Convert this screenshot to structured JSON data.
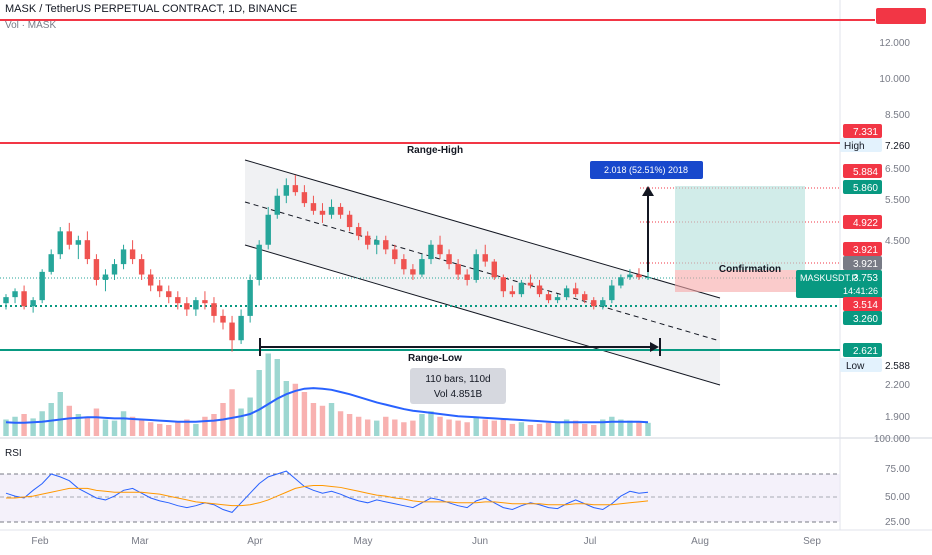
{
  "header": {
    "title": "MASK / TetherUS PERPETUAL CONTRACT, 1D, BINANCE",
    "volume_label": "Vol · MASK"
  },
  "colors": {
    "up": "#26a69a",
    "down": "#ef5350",
    "range_line": "#f23645",
    "ma_line": "#2962ff",
    "rsi_line": "#2962ff",
    "rsi_ma": "#ff9800",
    "confirm_box": "#f7a9a8",
    "target_box": "#b2dfdb",
    "measure_label": "#1848cc"
  },
  "chart_data": [
    {
      "type": "candlestick",
      "title": "MASK / TetherUS PERPETUAL CONTRACT, 1D, BINANCE",
      "scale": "log",
      "x_ticks": [
        "Feb",
        "Mar",
        "Apr",
        "May",
        "Jun",
        "Jul",
        "Aug",
        "Sep"
      ],
      "y_ticks": [
        "12.000",
        "10.000",
        "8.500",
        "6.500",
        "5.500",
        "4.500",
        "3.921",
        "3.260",
        "2.200",
        "1.900"
      ],
      "ohlc_approx": [
        [
          3.3,
          3.45,
          3.2,
          3.4
        ],
        [
          3.4,
          3.55,
          3.3,
          3.5
        ],
        [
          3.5,
          3.6,
          3.2,
          3.25
        ],
        [
          3.25,
          3.4,
          3.15,
          3.35
        ],
        [
          3.35,
          3.9,
          3.3,
          3.85
        ],
        [
          3.85,
          4.3,
          3.8,
          4.2
        ],
        [
          4.2,
          4.8,
          4.1,
          4.7
        ],
        [
          4.7,
          4.9,
          4.3,
          4.4
        ],
        [
          4.4,
          4.6,
          4.1,
          4.5
        ],
        [
          4.5,
          4.7,
          4.0,
          4.1
        ],
        [
          4.1,
          4.2,
          3.6,
          3.7
        ],
        [
          3.7,
          3.9,
          3.5,
          3.8
        ],
        [
          3.8,
          4.1,
          3.7,
          4.0
        ],
        [
          4.0,
          4.4,
          3.9,
          4.3
        ],
        [
          4.3,
          4.5,
          4.0,
          4.1
        ],
        [
          4.1,
          4.2,
          3.7,
          3.8
        ],
        [
          3.8,
          3.9,
          3.5,
          3.6
        ],
        [
          3.6,
          3.7,
          3.4,
          3.5
        ],
        [
          3.5,
          3.6,
          3.3,
          3.4
        ],
        [
          3.4,
          3.5,
          3.2,
          3.3
        ],
        [
          3.3,
          3.4,
          3.1,
          3.2
        ],
        [
          3.2,
          3.4,
          3.1,
          3.35
        ],
        [
          3.35,
          3.5,
          3.2,
          3.3
        ],
        [
          3.3,
          3.4,
          3.0,
          3.1
        ],
        [
          3.1,
          3.2,
          2.9,
          3.0
        ],
        [
          3.0,
          3.1,
          2.6,
          2.75
        ],
        [
          2.75,
          3.2,
          2.7,
          3.1
        ],
        [
          3.1,
          3.8,
          3.0,
          3.7
        ],
        [
          3.7,
          4.5,
          3.6,
          4.4
        ],
        [
          4.4,
          5.3,
          4.3,
          5.1
        ],
        [
          5.1,
          5.8,
          5.0,
          5.6
        ],
        [
          5.6,
          6.1,
          5.4,
          5.9
        ],
        [
          5.9,
          6.2,
          5.6,
          5.7
        ],
        [
          5.7,
          5.9,
          5.3,
          5.4
        ],
        [
          5.4,
          5.6,
          5.1,
          5.2
        ],
        [
          5.2,
          5.4,
          4.9,
          5.1
        ],
        [
          5.1,
          5.5,
          5.0,
          5.3
        ],
        [
          5.3,
          5.4,
          5.0,
          5.1
        ],
        [
          5.1,
          5.2,
          4.7,
          4.8
        ],
        [
          4.8,
          4.9,
          4.5,
          4.6
        ],
        [
          4.6,
          4.7,
          4.3,
          4.4
        ],
        [
          4.4,
          4.6,
          4.2,
          4.5
        ],
        [
          4.5,
          4.6,
          4.2,
          4.3
        ],
        [
          4.3,
          4.4,
          4.0,
          4.1
        ],
        [
          4.1,
          4.2,
          3.8,
          3.9
        ],
        [
          3.9,
          4.0,
          3.7,
          3.8
        ],
        [
          3.8,
          4.2,
          3.75,
          4.1
        ],
        [
          4.1,
          4.5,
          4.0,
          4.4
        ],
        [
          4.4,
          4.6,
          4.1,
          4.2
        ],
        [
          4.2,
          4.3,
          3.9,
          4.0
        ],
        [
          4.0,
          4.1,
          3.7,
          3.8
        ],
        [
          3.8,
          3.9,
          3.6,
          3.7
        ],
        [
          3.7,
          4.3,
          3.65,
          4.2
        ],
        [
          4.2,
          4.4,
          3.95,
          4.05
        ],
        [
          4.05,
          4.1,
          3.7,
          3.75
        ],
        [
          3.75,
          3.8,
          3.4,
          3.5
        ],
        [
          3.5,
          3.6,
          3.4,
          3.45
        ],
        [
          3.45,
          3.7,
          3.4,
          3.65
        ],
        [
          3.65,
          3.8,
          3.55,
          3.6
        ],
        [
          3.6,
          3.7,
          3.4,
          3.45
        ],
        [
          3.45,
          3.5,
          3.3,
          3.35
        ],
        [
          3.35,
          3.45,
          3.3,
          3.4
        ],
        [
          3.4,
          3.6,
          3.35,
          3.55
        ],
        [
          3.55,
          3.65,
          3.4,
          3.45
        ],
        [
          3.45,
          3.5,
          3.3,
          3.35
        ],
        [
          3.35,
          3.4,
          3.2,
          3.25
        ],
        [
          3.25,
          3.4,
          3.2,
          3.35
        ],
        [
          3.35,
          3.7,
          3.3,
          3.6
        ],
        [
          3.6,
          3.8,
          3.55,
          3.75
        ],
        [
          3.75,
          3.9,
          3.7,
          3.8
        ],
        [
          3.8,
          3.92,
          3.7,
          3.75
        ],
        [
          3.75,
          3.85,
          3.7,
          3.753
        ]
      ]
    },
    {
      "type": "bar",
      "title": "Vol · MASK",
      "values": [
        30,
        35,
        40,
        32,
        45,
        60,
        80,
        55,
        40,
        35,
        50,
        30,
        28,
        45,
        35,
        30,
        25,
        22,
        20,
        25,
        30,
        22,
        35,
        40,
        60,
        85,
        50,
        70,
        120,
        150,
        140,
        100,
        95,
        80,
        60,
        55,
        60,
        45,
        40,
        35,
        30,
        28,
        35,
        30,
        25,
        28,
        40,
        45,
        35,
        30,
        28,
        25,
        35,
        30,
        28,
        30,
        22,
        25,
        20,
        22,
        24,
        25,
        30,
        28,
        22,
        20,
        30,
        35,
        30,
        28,
        26,
        24
      ],
      "ma_values": [
        25,
        24,
        24,
        25,
        26,
        28,
        30,
        32,
        33,
        34,
        34,
        33,
        32,
        32,
        31,
        30,
        29,
        28,
        27,
        26,
        26,
        26,
        27,
        28,
        30,
        33,
        36,
        40,
        48,
        58,
        68,
        76,
        82,
        86,
        87,
        86,
        84,
        80,
        76,
        71,
        66,
        61,
        57,
        53,
        49,
        46,
        44,
        42,
        40,
        38,
        36,
        35,
        34,
        33,
        32,
        31,
        30,
        29,
        28,
        27,
        26,
        25,
        25,
        25,
        25,
        25,
        25,
        26,
        26,
        26,
        26,
        25
      ]
    },
    {
      "type": "line",
      "title": "RSI",
      "y_ticks": [
        "75.00",
        "50.00",
        "25.00"
      ],
      "ylim": [
        20,
        90
      ],
      "rsi_values": [
        55,
        52,
        50,
        58,
        65,
        75,
        72,
        68,
        60,
        55,
        50,
        48,
        52,
        58,
        60,
        55,
        50,
        47,
        45,
        42,
        40,
        42,
        45,
        43,
        38,
        35,
        45,
        55,
        65,
        72,
        75,
        78,
        70,
        62,
        58,
        55,
        57,
        54,
        50,
        47,
        45,
        48,
        46,
        44,
        42,
        40,
        45,
        50,
        48,
        45,
        42,
        40,
        47,
        50,
        45,
        40,
        38,
        42,
        45,
        43,
        40,
        39,
        44,
        48,
        44,
        40,
        38,
        44,
        52,
        57,
        55,
        56
      ],
      "rsi_ma_values": [
        50,
        50,
        51,
        52,
        54,
        56,
        58,
        60,
        60,
        60,
        58,
        57,
        56,
        56,
        56,
        56,
        55,
        54,
        52,
        50,
        48,
        46,
        45,
        44,
        43,
        42,
        42,
        43,
        45,
        48,
        52,
        56,
        60,
        62,
        63,
        63,
        62,
        61,
        59,
        57,
        55,
        53,
        52,
        50,
        49,
        47,
        46,
        46,
        46,
        46,
        45,
        45,
        45,
        46,
        46,
        45,
        44,
        44,
        44,
        44,
        43,
        43,
        43,
        44,
        44,
        43,
        43,
        43,
        44,
        45,
        46,
        47
      ]
    }
  ],
  "price_labels": {
    "top_red": "",
    "p12": "12.000",
    "p10": "10.000",
    "p85": "8.500",
    "high_red": "7.331",
    "high_name": "High",
    "high_val": "7.260",
    "p65": "6.500",
    "r5884": "5.884",
    "g5860": "5.860",
    "p55": "5.500",
    "r4922": "4.922",
    "p45": "4.500",
    "r3921": "3.921",
    "gray3921": "3.921",
    "current": "3.753",
    "countdown": "14:41:26",
    "symbol": "MASKUSDT.P",
    "r3514": "3.514",
    "g3260": "3.260",
    "g2621": "2.621",
    "low_name": "Low",
    "low_val": "2.588",
    "p22": "2.200",
    "p19": "1.900",
    "p1000": "100.000",
    "rsi75": "75.00",
    "rsi50": "50.00",
    "rsi25": "25.00"
  },
  "annotations": {
    "range_high": "Range-High",
    "range_low": "Range-Low",
    "confirmation": "Confirmation",
    "measure": "2.018 (52.51%) 2018",
    "bars_line1": "110 bars, 110d",
    "bars_line2": "Vol 4.851B"
  },
  "rsi_label": "RSI",
  "x_axis": [
    "Feb",
    "Mar",
    "Apr",
    "May",
    "Jun",
    "Jul",
    "Aug",
    "Sep"
  ]
}
